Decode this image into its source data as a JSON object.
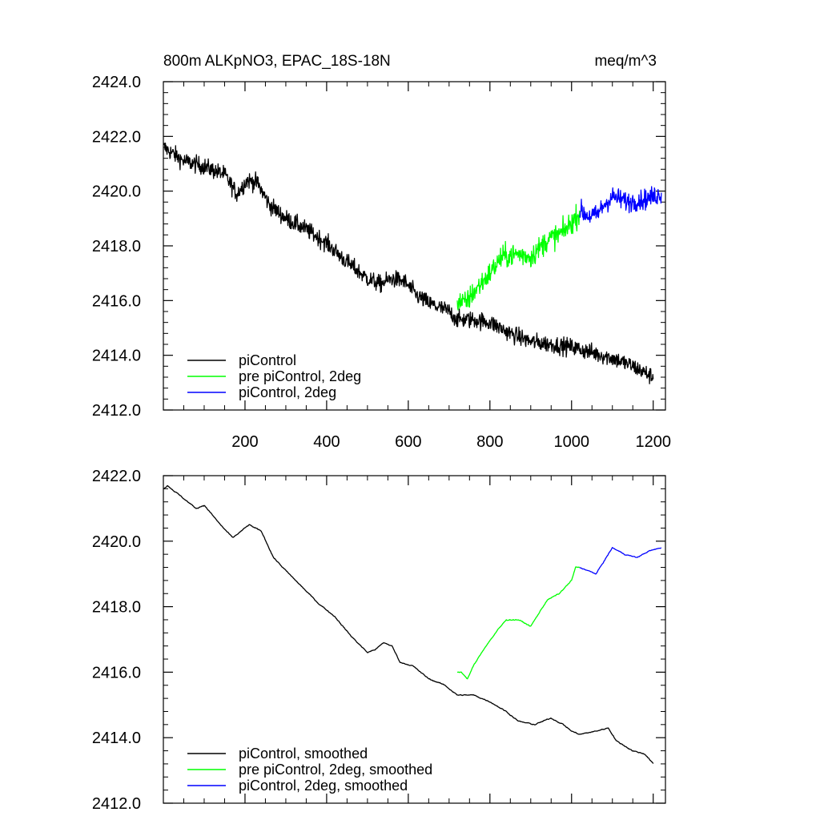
{
  "header": {
    "title": "800m ALKpNO3, EPAC_18S-18N",
    "units": "meq/m^3"
  },
  "chart_data": [
    {
      "type": "line",
      "variant": "raw",
      "xlim": [
        0,
        1230
      ],
      "ylim": [
        2412.0,
        2424.0
      ],
      "x_ticks": [
        200,
        400,
        600,
        800,
        1000,
        1200
      ],
      "x_tick_labels": [
        "200",
        "400",
        "600",
        "800",
        "1000",
        "1200"
      ],
      "y_ticks": [
        2412,
        2414,
        2416,
        2418,
        2420,
        2422,
        2424
      ],
      "y_tick_labels": [
        "2412.0",
        "2414.0",
        "2416.0",
        "2418.0",
        "2420.0",
        "2422.0",
        "2424.0"
      ],
      "legend_position": "bottom-left",
      "series": [
        {
          "name": "piControl",
          "color": "#000000",
          "noise": 0.3,
          "points": [
            [
              1,
              2421.6
            ],
            [
              50,
              2421.1
            ],
            [
              100,
              2420.9
            ],
            [
              150,
              2420.6
            ],
            [
              180,
              2419.9
            ],
            [
              205,
              2420.4
            ],
            [
              230,
              2420.3
            ],
            [
              260,
              2419.5
            ],
            [
              300,
              2419.0
            ],
            [
              350,
              2418.6
            ],
            [
              400,
              2418.1
            ],
            [
              450,
              2417.4
            ],
            [
              500,
              2416.8
            ],
            [
              530,
              2416.6
            ],
            [
              560,
              2416.8
            ],
            [
              590,
              2416.7
            ],
            [
              620,
              2416.2
            ],
            [
              650,
              2415.9
            ],
            [
              700,
              2415.6
            ],
            [
              720,
              2415.3
            ],
            [
              760,
              2415.3
            ],
            [
              800,
              2415.2
            ],
            [
              850,
              2414.8
            ],
            [
              900,
              2414.5
            ],
            [
              950,
              2414.4
            ],
            [
              1000,
              2414.3
            ],
            [
              1050,
              2414.1
            ],
            [
              1100,
              2413.9
            ],
            [
              1150,
              2413.6
            ],
            [
              1200,
              2413.2
            ]
          ]
        },
        {
          "name": "pre piControl, 2deg",
          "color": "#00ff00",
          "noise": 0.4,
          "points": [
            [
              720,
              2416.0
            ],
            [
              740,
              2415.9
            ],
            [
              760,
              2416.3
            ],
            [
              800,
              2417.0
            ],
            [
              830,
              2417.6
            ],
            [
              870,
              2417.7
            ],
            [
              900,
              2417.6
            ],
            [
              940,
              2418.2
            ],
            [
              980,
              2418.5
            ],
            [
              1020,
              2419.2
            ]
          ]
        },
        {
          "name": "piControl, 2deg",
          "color": "#0000ff",
          "noise": 0.35,
          "points": [
            [
              1020,
              2419.3
            ],
            [
              1040,
              2419.1
            ],
            [
              1060,
              2419.1
            ],
            [
              1080,
              2419.5
            ],
            [
              1100,
              2419.8
            ],
            [
              1140,
              2419.6
            ],
            [
              1180,
              2419.7
            ],
            [
              1220,
              2419.9
            ]
          ]
        }
      ]
    },
    {
      "type": "line",
      "variant": "smoothed",
      "xlim": [
        0,
        1230
      ],
      "ylim": [
        2412.0,
        2422.0
      ],
      "x_ticks": [
        200,
        400,
        600,
        800,
        1000,
        1200
      ],
      "y_ticks": [
        2412,
        2414,
        2416,
        2418,
        2420,
        2422
      ],
      "y_tick_labels": [
        "2412.0",
        "2414.0",
        "2416.0",
        "2418.0",
        "2420.0",
        "2422.0"
      ],
      "legend_position": "bottom-left",
      "series": [
        {
          "name": "piControl, smoothed",
          "color": "#000000",
          "noise": 0.05,
          "points": [
            [
              1,
              2421.6
            ],
            [
              10,
              2421.7
            ],
            [
              30,
              2421.5
            ],
            [
              60,
              2421.2
            ],
            [
              80,
              2421.0
            ],
            [
              100,
              2421.1
            ],
            [
              120,
              2420.8
            ],
            [
              140,
              2420.5
            ],
            [
              170,
              2420.1
            ],
            [
              190,
              2420.3
            ],
            [
              210,
              2420.5
            ],
            [
              240,
              2420.3
            ],
            [
              270,
              2419.5
            ],
            [
              300,
              2419.1
            ],
            [
              340,
              2418.6
            ],
            [
              380,
              2418.1
            ],
            [
              420,
              2417.7
            ],
            [
              460,
              2417.1
            ],
            [
              500,
              2416.6
            ],
            [
              520,
              2416.7
            ],
            [
              540,
              2416.9
            ],
            [
              560,
              2416.8
            ],
            [
              580,
              2416.3
            ],
            [
              610,
              2416.2
            ],
            [
              650,
              2415.8
            ],
            [
              690,
              2415.6
            ],
            [
              720,
              2415.3
            ],
            [
              760,
              2415.3
            ],
            [
              800,
              2415.1
            ],
            [
              840,
              2414.8
            ],
            [
              870,
              2414.5
            ],
            [
              910,
              2414.4
            ],
            [
              950,
              2414.6
            ],
            [
              980,
              2414.4
            ],
            [
              1000,
              2414.2
            ],
            [
              1020,
              2414.1
            ],
            [
              1060,
              2414.2
            ],
            [
              1090,
              2414.3
            ],
            [
              1110,
              2413.9
            ],
            [
              1150,
              2413.6
            ],
            [
              1180,
              2413.5
            ],
            [
              1200,
              2413.2
            ]
          ]
        },
        {
          "name": "pre piControl, 2deg, smoothed",
          "color": "#00ff00",
          "noise": 0.05,
          "points": [
            [
              720,
              2416.0
            ],
            [
              730,
              2416.0
            ],
            [
              745,
              2415.8
            ],
            [
              760,
              2416.2
            ],
            [
              790,
              2416.8
            ],
            [
              820,
              2417.3
            ],
            [
              840,
              2417.6
            ],
            [
              870,
              2417.6
            ],
            [
              900,
              2417.4
            ],
            [
              920,
              2417.8
            ],
            [
              940,
              2418.2
            ],
            [
              970,
              2418.4
            ],
            [
              1000,
              2418.8
            ],
            [
              1010,
              2419.2
            ],
            [
              1020,
              2419.2
            ]
          ]
        },
        {
          "name": "piControl, 2deg, smoothed",
          "color": "#0000ff",
          "noise": 0.04,
          "points": [
            [
              1020,
              2419.2
            ],
            [
              1040,
              2419.1
            ],
            [
              1060,
              2419.0
            ],
            [
              1080,
              2419.4
            ],
            [
              1100,
              2419.8
            ],
            [
              1130,
              2419.6
            ],
            [
              1160,
              2419.5
            ],
            [
              1190,
              2419.7
            ],
            [
              1220,
              2419.8
            ]
          ]
        }
      ]
    }
  ]
}
